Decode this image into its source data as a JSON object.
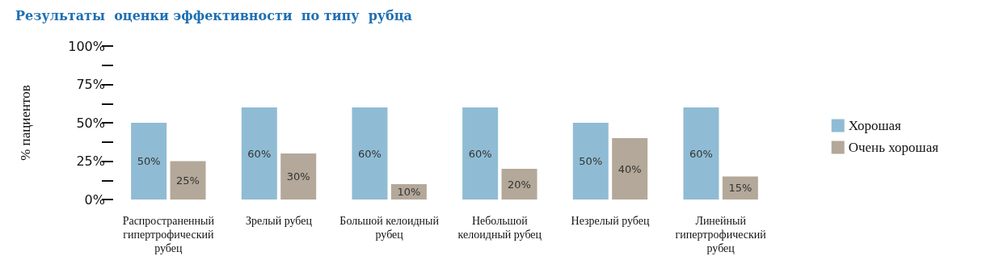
{
  "chart_data": {
    "type": "bar",
    "title": "Результаты  оценки эффективности  по типу  рубца",
    "ylabel": "% пациентов",
    "categories": [
      "Распространенный гипертрофический рубец",
      "Зрелый рубец",
      "Большой келоидный рубец",
      "Небольшой келоидный рубец",
      "Незрелый рубец",
      "Линейный гипертрофический рубец"
    ],
    "series": [
      {
        "name": "Хорошая",
        "color": "#8fbcd4",
        "values": [
          50,
          60,
          60,
          60,
          50,
          60
        ],
        "value_labels": [
          "50%",
          "60%",
          "60%",
          "60%",
          "50%",
          "60%"
        ]
      },
      {
        "name": "Очень хорошая",
        "color": "#b3a899",
        "values": [
          25,
          30,
          10,
          20,
          40,
          15
        ],
        "value_labels": [
          "25%",
          "30%",
          "10%",
          "20%",
          "40%",
          "15%"
        ]
      }
    ],
    "ylim": [
      0,
      100
    ],
    "yticks": [
      {
        "value": 0,
        "label": "0%"
      },
      {
        "value": 12.5,
        "label": null
      },
      {
        "value": 25,
        "label": "25%"
      },
      {
        "value": 37.5,
        "label": null
      },
      {
        "value": 50,
        "label": "50%"
      },
      {
        "value": 62.5,
        "label": null
      },
      {
        "value": 75,
        "label": "75%"
      },
      {
        "value": 87.5,
        "label": null
      },
      {
        "value": 100,
        "label": "100%"
      }
    ],
    "grid": false,
    "legend": "right"
  }
}
